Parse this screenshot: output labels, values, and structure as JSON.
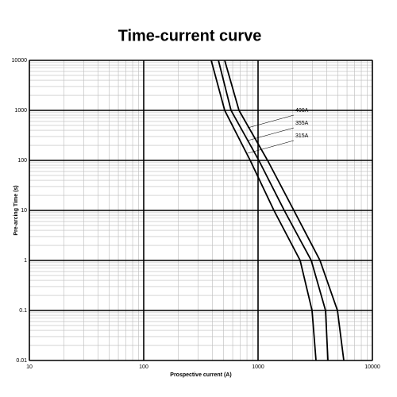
{
  "chart_data": {
    "type": "line",
    "title": "Time-current curve",
    "x_label": "Prospective current (A)",
    "y_label": "Pre-arcing Time (s)",
    "log_x": true,
    "log_y": true,
    "grid": true,
    "xlim": [
      10,
      10000
    ],
    "xticks": [
      10,
      100,
      1000,
      10000
    ],
    "ylim": [
      0.01,
      10000
    ],
    "yticks": [
      10000,
      1000,
      100,
      10,
      1,
      0.1,
      0.01
    ],
    "series": [
      {
        "name": "315A",
        "color": "#000000",
        "x": [
          389,
          511,
          853,
          1377,
          2333,
          2966,
          3214
        ],
        "values": [
          10000,
          1000,
          100,
          10,
          1,
          0.1,
          0.01
        ]
      },
      {
        "name": "355A",
        "color": "#000000",
        "x": [
          450,
          581,
          1016,
          1694,
          2917,
          3890,
          4082
        ],
        "values": [
          10000,
          1000,
          100,
          10,
          1,
          0.1,
          0.01
        ]
      },
      {
        "name": "400A",
        "color": "#000000",
        "x": [
          511,
          681,
          1211,
          2056,
          3483,
          4946,
          5623
        ],
        "values": [
          10000,
          1000,
          100,
          10,
          1,
          0.1,
          0.01
        ]
      }
    ]
  }
}
